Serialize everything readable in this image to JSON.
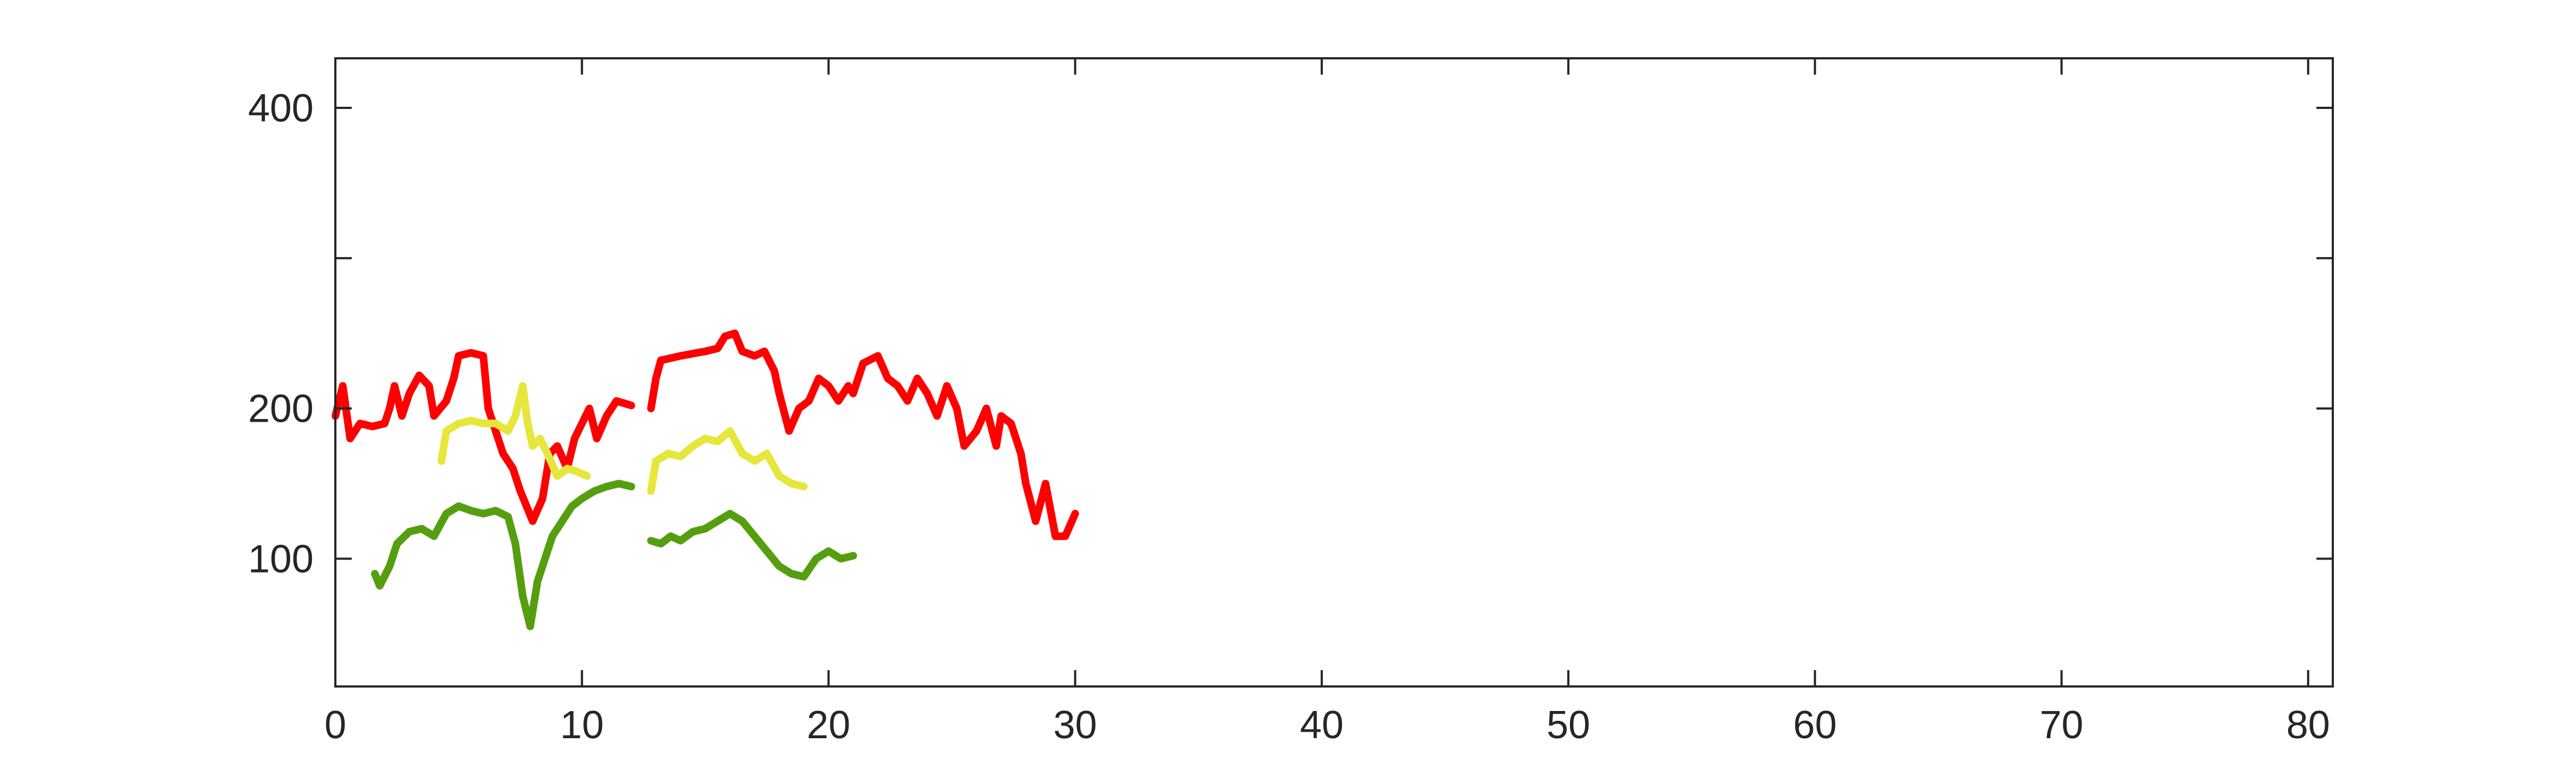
{
  "chart_data": {
    "type": "line",
    "title": "",
    "xlabel": "",
    "ylabel": "",
    "xlim": [
      0,
      81
    ],
    "ylim": [
      15,
      433
    ],
    "grid": false,
    "legend": "none",
    "xticks": [
      0,
      10,
      20,
      30,
      40,
      50,
      60,
      70,
      80
    ],
    "xtick_labels": [
      "0",
      "10",
      "20",
      "30",
      "40",
      "50",
      "60",
      "70",
      "80"
    ],
    "yticks": [
      100,
      200,
      300,
      400
    ],
    "ytick_labels": [
      "100",
      "200",
      "",
      "400"
    ],
    "series": [
      {
        "color": "#ff0000",
        "segments": [
          [
            [
              0,
              195
            ],
            [
              0.3,
              215
            ],
            [
              0.6,
              180
            ],
            [
              1,
              190
            ],
            [
              1.5,
              188
            ],
            [
              2,
              190
            ],
            [
              2.2,
              200
            ],
            [
              2.4,
              215
            ],
            [
              2.7,
              195
            ],
            [
              3,
              210
            ],
            [
              3.4,
              222
            ],
            [
              3.8,
              215
            ],
            [
              4,
              195
            ],
            [
              4.5,
              205
            ],
            [
              4.8,
              220
            ],
            [
              5,
              235
            ],
            [
              5.5,
              237
            ],
            [
              6,
              235
            ],
            [
              6.2,
              200
            ],
            [
              6.5,
              185
            ],
            [
              6.8,
              170
            ],
            [
              7.2,
              160
            ],
            [
              7.5,
              145
            ],
            [
              8,
              125
            ],
            [
              8.4,
              140
            ],
            [
              8.7,
              170
            ],
            [
              9,
              175
            ],
            [
              9.4,
              160
            ],
            [
              9.7,
              180
            ],
            [
              10,
              190
            ],
            [
              10.3,
              200
            ],
            [
              10.6,
              180
            ],
            [
              11,
              195
            ],
            [
              11.4,
              205
            ],
            [
              12,
              202
            ]
          ],
          [
            [
              12.8,
              200
            ],
            [
              13,
              220
            ],
            [
              13.2,
              232
            ],
            [
              14,
              235
            ],
            [
              15,
              238
            ],
            [
              15.5,
              240
            ],
            [
              15.8,
              248
            ],
            [
              16.2,
              250
            ],
            [
              16.5,
              238
            ],
            [
              17,
              235
            ],
            [
              17.4,
              238
            ],
            [
              17.8,
              225
            ],
            [
              18,
              210
            ],
            [
              18.4,
              185
            ],
            [
              18.8,
              200
            ],
            [
              19.2,
              205
            ],
            [
              19.6,
              220
            ],
            [
              20,
              215
            ],
            [
              20.4,
              205
            ],
            [
              20.8,
              215
            ],
            [
              21,
              210
            ],
            [
              21.4,
              230
            ],
            [
              22,
              235
            ],
            [
              22.4,
              220
            ],
            [
              22.8,
              215
            ],
            [
              23.2,
              205
            ],
            [
              23.6,
              220
            ],
            [
              24,
              210
            ],
            [
              24.4,
              195
            ],
            [
              24.8,
              215
            ],
            [
              25.2,
              200
            ],
            [
              25.5,
              175
            ],
            [
              26,
              185
            ],
            [
              26.4,
              200
            ],
            [
              26.8,
              175
            ],
            [
              27,
              195
            ],
            [
              27.4,
              190
            ],
            [
              27.8,
              170
            ],
            [
              28,
              150
            ],
            [
              28.4,
              125
            ],
            [
              28.8,
              150
            ],
            [
              29.2,
              115
            ],
            [
              29.6,
              115
            ],
            [
              30,
              130
            ]
          ]
        ]
      },
      {
        "color": "#e6e63c",
        "segments": [
          [
            [
              4.3,
              165
            ],
            [
              4.5,
              185
            ],
            [
              5,
              190
            ],
            [
              5.5,
              192
            ],
            [
              6,
              190
            ],
            [
              6.5,
              190
            ],
            [
              7,
              185
            ],
            [
              7.3,
              195
            ],
            [
              7.6,
              215
            ],
            [
              7.8,
              190
            ],
            [
              8,
              175
            ],
            [
              8.3,
              180
            ],
            [
              8.6,
              170
            ],
            [
              9,
              155
            ],
            [
              9.4,
              160
            ],
            [
              9.8,
              158
            ],
            [
              10.2,
              155
            ]
          ],
          [
            [
              12.8,
              145
            ],
            [
              13,
              165
            ],
            [
              13.5,
              170
            ],
            [
              14,
              168
            ],
            [
              14.5,
              175
            ],
            [
              15,
              180
            ],
            [
              15.5,
              178
            ],
            [
              16,
              185
            ],
            [
              16.5,
              170
            ],
            [
              17,
              165
            ],
            [
              17.5,
              170
            ],
            [
              18,
              155
            ],
            [
              18.5,
              150
            ],
            [
              19,
              148
            ]
          ]
        ]
      },
      {
        "color": "#559f0f",
        "segments": [
          [
            [
              1.6,
              90
            ],
            [
              1.8,
              82
            ],
            [
              2.2,
              95
            ],
            [
              2.5,
              110
            ],
            [
              3,
              118
            ],
            [
              3.5,
              120
            ],
            [
              4,
              115
            ],
            [
              4.5,
              130
            ],
            [
              5,
              135
            ],
            [
              5.5,
              132
            ],
            [
              6,
              130
            ],
            [
              6.5,
              132
            ],
            [
              7,
              128
            ],
            [
              7.3,
              110
            ],
            [
              7.6,
              75
            ],
            [
              7.9,
              55
            ],
            [
              8.2,
              85
            ],
            [
              8.5,
              100
            ],
            [
              8.8,
              115
            ],
            [
              9.2,
              125
            ],
            [
              9.6,
              135
            ],
            [
              10,
              140
            ],
            [
              10.5,
              145
            ],
            [
              11,
              148
            ],
            [
              11.5,
              150
            ],
            [
              12,
              148
            ]
          ],
          [
            [
              12.8,
              112
            ],
            [
              13.2,
              110
            ],
            [
              13.6,
              115
            ],
            [
              14,
              112
            ],
            [
              14.5,
              118
            ],
            [
              15,
              120
            ],
            [
              15.5,
              125
            ],
            [
              16,
              130
            ],
            [
              16.5,
              125
            ],
            [
              17,
              115
            ],
            [
              17.5,
              105
            ],
            [
              18,
              95
            ],
            [
              18.5,
              90
            ],
            [
              19,
              88
            ],
            [
              19.5,
              100
            ],
            [
              20,
              105
            ],
            [
              20.5,
              100
            ],
            [
              21,
              102
            ]
          ]
        ]
      }
    ]
  }
}
